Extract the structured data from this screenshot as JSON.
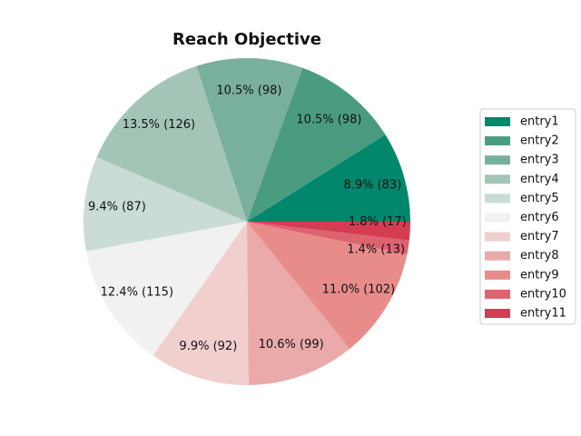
{
  "chart_data": {
    "type": "pie",
    "title": "Reach Objective",
    "categories": [
      "entry1",
      "entry2",
      "entry3",
      "entry4",
      "entry5",
      "entry6",
      "entry7",
      "entry8",
      "entry9",
      "entry10",
      "entry11"
    ],
    "values": [
      83,
      98,
      98,
      126,
      87,
      115,
      92,
      99,
      102,
      13,
      17
    ],
    "labels": [
      "8.9%  (83)",
      "10.5%  (98)",
      "10.5%  (98)",
      "13.5%  (126)",
      "9.4%  (87)",
      "12.4%  (115)",
      "9.9%  (92)",
      "10.6%  (99)",
      "11.0%  (102)",
      "1.4%  (13)",
      "1.8%  (17)"
    ],
    "colors": [
      "#00876c",
      "#4a9c80",
      "#78b09b",
      "#a2c5b6",
      "#c9dcd5",
      "#f1f1f1",
      "#f1cfcf",
      "#ebaaaa",
      "#e88c8b",
      "#de6370",
      "#d43d51"
    ],
    "legend_position": "right"
  }
}
